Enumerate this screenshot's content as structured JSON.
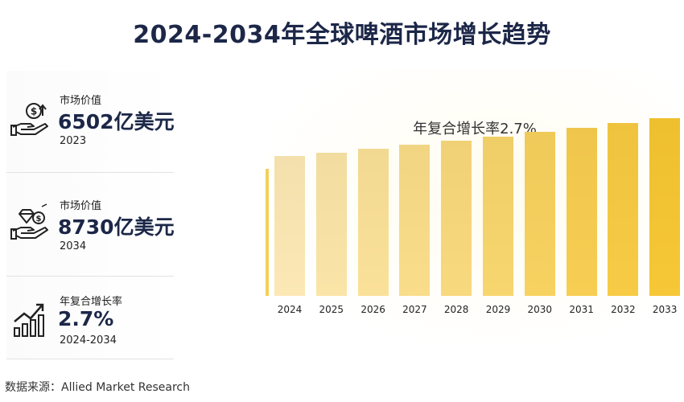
{
  "title": "2024-2034年全球啤酒市场增长趋势",
  "cards": [
    {
      "label": "市场价值",
      "value": "6502亿美元",
      "sub": "2023",
      "icon": "money-hand-icon"
    },
    {
      "label": "市场价值",
      "value": "8730亿美元",
      "sub": "2034",
      "icon": "diamond-hand-icon"
    },
    {
      "label": "年复合增长率",
      "value": "2.7%",
      "sub": "2024-2034",
      "icon": "growth-chart-icon"
    }
  ],
  "cagr_label": "年复合增长率2.7%",
  "source": "数据来源：Allied Market Research",
  "colors": {
    "title": "#1c2748",
    "bar_light": "#fbe8b5",
    "bar_dark": "#f6c737",
    "axis": "#f2cf5a"
  },
  "chart_data": {
    "type": "bar",
    "categories": [
      "2024",
      "2025",
      "2026",
      "2027",
      "2028",
      "2029",
      "2030",
      "2031",
      "2032",
      "2033"
    ],
    "values": [
      667.6,
      685.6,
      704.1,
      723.1,
      742.6,
      762.7,
      783.3,
      804.4,
      826.1,
      848.4
    ],
    "title": "年复合增长率2.7%",
    "xlabel": "",
    "ylabel": "",
    "ylim": [
      0,
      1000
    ],
    "grid": false
  }
}
